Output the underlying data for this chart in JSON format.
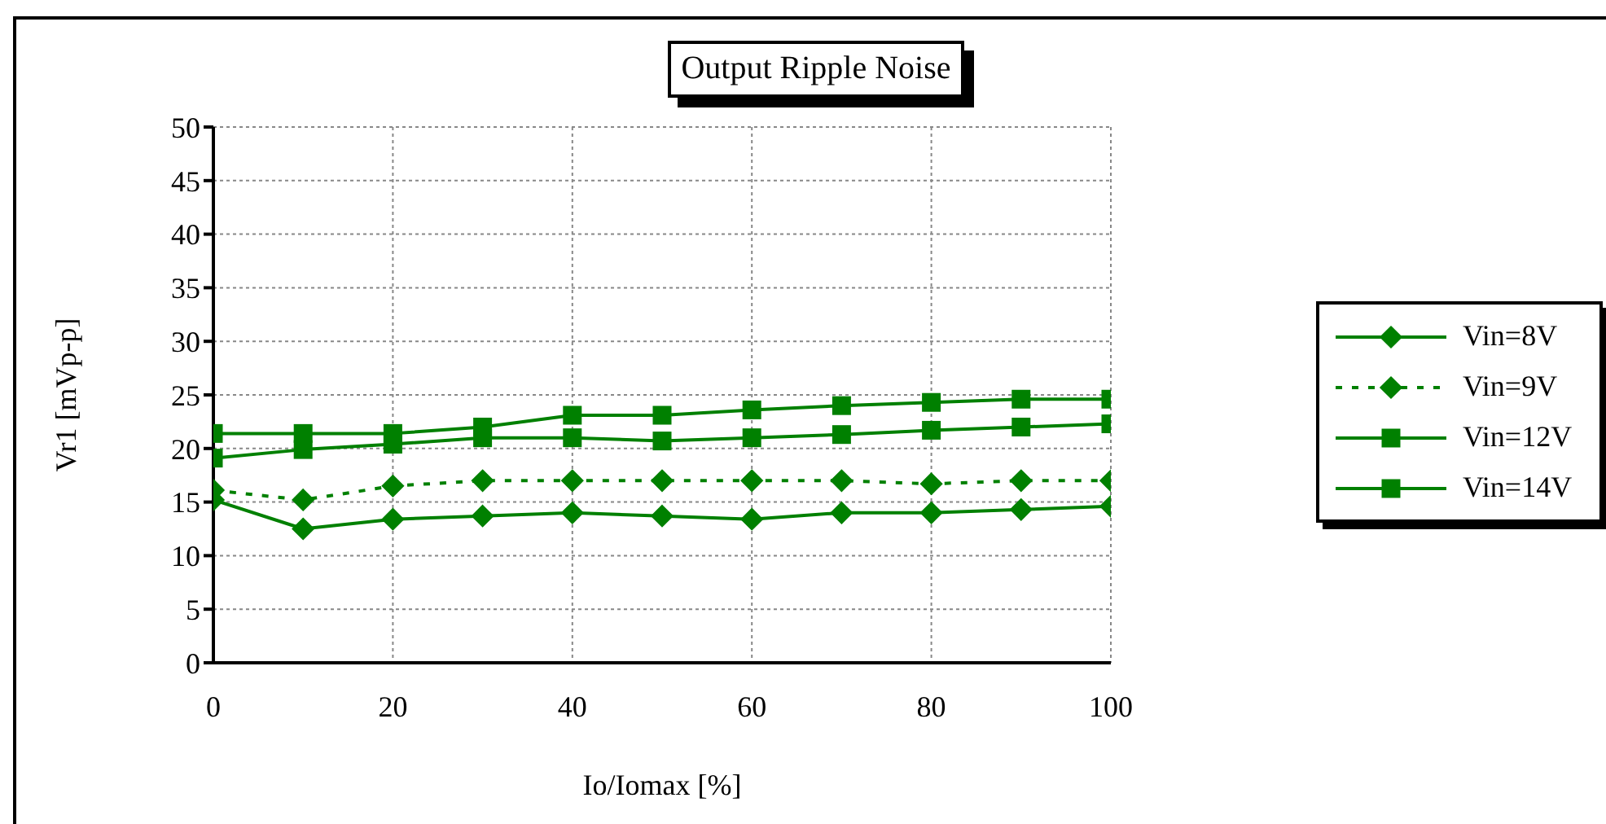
{
  "chart_data": {
    "type": "line",
    "title": "Output Ripple Noise",
    "xlabel": "Io/Iomax [%]",
    "ylabel": "Vr1 [mVp-p]",
    "x": [
      0,
      10,
      20,
      30,
      40,
      50,
      60,
      70,
      80,
      90,
      100
    ],
    "series": [
      {
        "name": "Vin=8V",
        "color": "#008000",
        "marker": "diamond",
        "line_style": "solid",
        "values": [
          15.2,
          12.5,
          13.4,
          13.7,
          14,
          13.7,
          13.4,
          14,
          14,
          14.3,
          14.6
        ]
      },
      {
        "name": "Vin=9V",
        "color": "#008000",
        "marker": "diamond",
        "line_style": "dotted",
        "values": [
          16.1,
          15.2,
          16.5,
          17,
          17,
          17,
          17,
          17,
          16.7,
          17,
          17
        ]
      },
      {
        "name": "Vin=12V",
        "color": "#008000",
        "marker": "square",
        "line_style": "solid",
        "values": [
          19.1,
          19.9,
          20.4,
          21,
          21,
          20.7,
          21,
          21.3,
          21.7,
          22,
          22.3
        ]
      },
      {
        "name": "Vin=14V",
        "color": "#008000",
        "marker": "square",
        "line_style": "solid",
        "values": [
          21.4,
          21.4,
          21.4,
          22,
          23.1,
          23.1,
          23.6,
          24,
          24.3,
          24.6,
          24.6
        ]
      }
    ],
    "xlim": [
      0,
      100
    ],
    "xticks": [
      0,
      20,
      40,
      60,
      80,
      100
    ],
    "ylim": [
      0,
      50
    ],
    "yticks": [
      0,
      5,
      10,
      15,
      20,
      25,
      30,
      35,
      40,
      45,
      50
    ],
    "grid": true,
    "legend": "right"
  }
}
